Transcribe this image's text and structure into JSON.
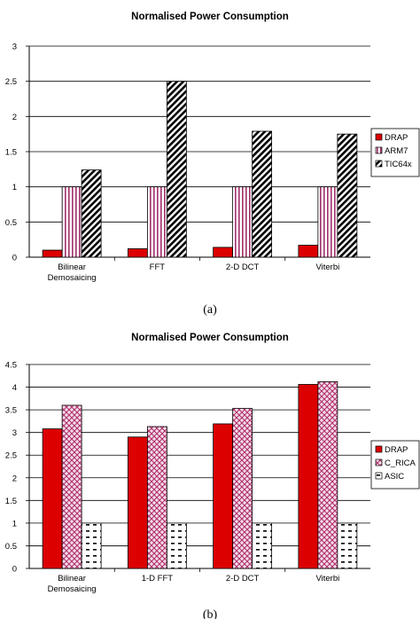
{
  "chart_data": [
    {
      "type": "bar",
      "title": "Normalised Power Consumption",
      "caption": "(a)",
      "categories": [
        [
          "Bilinear",
          "Demosaicing"
        ],
        [
          "FFT"
        ],
        [
          "2-D DCT"
        ],
        [
          "Viterbi"
        ]
      ],
      "series": [
        {
          "name": "DRAP",
          "values": [
            0.1,
            0.12,
            0.14,
            0.17
          ],
          "pattern": "solid-red"
        },
        {
          "name": "ARM7",
          "values": [
            1,
            1,
            1,
            1
          ],
          "pattern": "vertical-lines"
        },
        {
          "name": "TIC64x",
          "values": [
            1.24,
            2.5,
            1.79,
            1.75
          ],
          "pattern": "diagonal-lines"
        }
      ],
      "yticks": [
        "0",
        "0.5",
        "1",
        "1.5",
        "2",
        "2.5",
        "3"
      ],
      "ylim": [
        0,
        3
      ],
      "grid": true,
      "legend": "right"
    },
    {
      "type": "bar",
      "title": "Normalised Power Consumption",
      "caption": "(b)",
      "categories": [
        [
          "Bilinear",
          "Demosaicing"
        ],
        [
          "1-D FFT"
        ],
        [
          "2-D DCT"
        ],
        [
          "Viterbi"
        ]
      ],
      "series": [
        {
          "name": "DRAP",
          "values": [
            3.08,
            2.9,
            3.19,
            4.06
          ],
          "pattern": "solid-red"
        },
        {
          "name": "C_RICA",
          "values": [
            3.6,
            3.13,
            3.53,
            4.12
          ],
          "pattern": "crosshatch"
        },
        {
          "name": "ASIC",
          "values": [
            1,
            1,
            1,
            1
          ],
          "pattern": "dashes"
        }
      ],
      "yticks": [
        "0",
        "0.5",
        "1",
        "1.5",
        "2",
        "2.5",
        "3",
        "3.5",
        "4",
        "4.5"
      ],
      "ylim": [
        0,
        4.5
      ],
      "grid": true,
      "legend": "right"
    }
  ]
}
